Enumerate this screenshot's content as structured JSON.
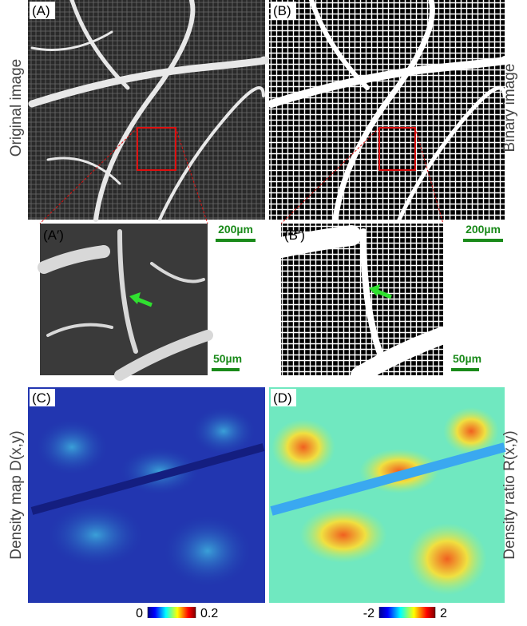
{
  "panels": {
    "a": {
      "label": "(A)",
      "side_label": "Original image"
    },
    "b": {
      "label": "(B)",
      "side_label": "Binary image"
    },
    "a_zoom": {
      "label": "(A′)"
    },
    "b_zoom": {
      "label": "(B′)"
    },
    "c": {
      "label": "(C)",
      "side_label": "Density map D(x,y)",
      "colorbar": {
        "ticks": [
          0,
          0.2
        ]
      }
    },
    "d": {
      "label": "(D)",
      "side_label": "Density ratio R(x,y)",
      "colorbar": {
        "ticks": [
          -2,
          2
        ]
      }
    }
  },
  "scale_bars": {
    "large_a": "200µm",
    "large_b": "200µm",
    "small_a": "50µm",
    "small_b": "50µm"
  }
}
